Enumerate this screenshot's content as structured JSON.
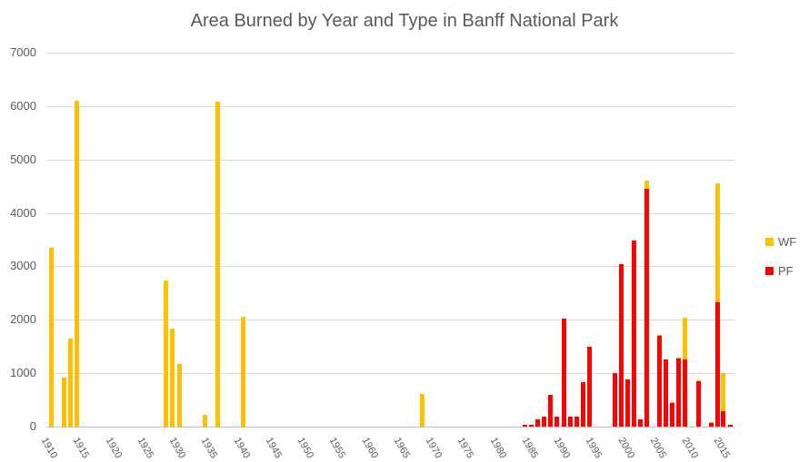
{
  "chart_data": {
    "type": "bar",
    "stacked": true,
    "title": "Area Burned by Year and Type in Banff National Park",
    "xlabel": "",
    "ylabel": "",
    "ylim": [
      0,
      7000
    ],
    "yticks": [
      0,
      1000,
      2000,
      3000,
      4000,
      5000,
      6000,
      7000
    ],
    "xrange": [
      1910,
      2015
    ],
    "xtick_labels": [
      "1910",
      "1915",
      "1920",
      "1925",
      "1930",
      "1935",
      "1940",
      "1945",
      "1950",
      "1955",
      "1960",
      "1965",
      "1970",
      "1975",
      "1980",
      "1985",
      "1990",
      "1995",
      "2000",
      "2005",
      "2010",
      "2015"
    ],
    "grid": true,
    "legend_position": "right",
    "series": [
      {
        "name": "WF",
        "color": "#ffc000"
      },
      {
        "name": "PF",
        "color": "#ff0000"
      }
    ],
    "data": [
      {
        "year": 1910,
        "PF": 0,
        "WF": 3350
      },
      {
        "year": 1912,
        "PF": 0,
        "WF": 920
      },
      {
        "year": 1913,
        "PF": 0,
        "WF": 1640
      },
      {
        "year": 1914,
        "PF": 0,
        "WF": 6100
      },
      {
        "year": 1928,
        "PF": 0,
        "WF": 2730
      },
      {
        "year": 1929,
        "PF": 0,
        "WF": 1830
      },
      {
        "year": 1930,
        "PF": 0,
        "WF": 1180
      },
      {
        "year": 1934,
        "PF": 0,
        "WF": 220
      },
      {
        "year": 1936,
        "PF": 0,
        "WF": 6090
      },
      {
        "year": 1940,
        "PF": 0,
        "WF": 2060
      },
      {
        "year": 1968,
        "PF": 0,
        "WF": 610
      },
      {
        "year": 1984,
        "PF": 40,
        "WF": 0
      },
      {
        "year": 1985,
        "PF": 40,
        "WF": 0
      },
      {
        "year": 1986,
        "PF": 130,
        "WF": 0
      },
      {
        "year": 1987,
        "PF": 190,
        "WF": 0
      },
      {
        "year": 1988,
        "PF": 600,
        "WF": 0
      },
      {
        "year": 1989,
        "PF": 190,
        "WF": 0
      },
      {
        "year": 1990,
        "PF": 2020,
        "WF": 0
      },
      {
        "year": 1991,
        "PF": 190,
        "WF": 0
      },
      {
        "year": 1992,
        "PF": 190,
        "WF": 0
      },
      {
        "year": 1993,
        "PF": 840,
        "WF": 0
      },
      {
        "year": 1994,
        "PF": 1490,
        "WF": 0
      },
      {
        "year": 1998,
        "PF": 1010,
        "WF": 0
      },
      {
        "year": 1999,
        "PF": 3040,
        "WF": 0
      },
      {
        "year": 2000,
        "PF": 890,
        "WF": 0
      },
      {
        "year": 2001,
        "PF": 3490,
        "WF": 0
      },
      {
        "year": 2002,
        "PF": 130,
        "WF": 0
      },
      {
        "year": 2003,
        "PF": 4460,
        "WF": 140
      },
      {
        "year": 2005,
        "PF": 1700,
        "WF": 20
      },
      {
        "year": 2006,
        "PF": 1250,
        "WF": 0
      },
      {
        "year": 2007,
        "PF": 440,
        "WF": 20
      },
      {
        "year": 2008,
        "PF": 1280,
        "WF": 20
      },
      {
        "year": 2009,
        "PF": 1250,
        "WF": 790
      },
      {
        "year": 2011,
        "PF": 850,
        "WF": 20
      },
      {
        "year": 2013,
        "PF": 60,
        "WF": 20
      },
      {
        "year": 2014,
        "PF": 2320,
        "WF": 2240
      },
      {
        "year": 2014.9,
        "PF": 290,
        "WF": 710
      },
      {
        "year": 2016,
        "PF": 40,
        "WF": 0
      }
    ]
  },
  "legend": {
    "items": [
      {
        "label": "WF",
        "color": "#ffc000"
      },
      {
        "label": "PF",
        "color": "#ff0000"
      }
    ]
  }
}
